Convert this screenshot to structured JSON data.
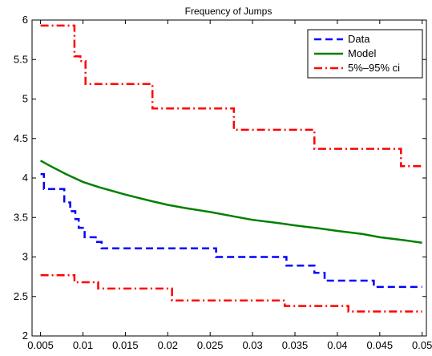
{
  "chart_data": {
    "type": "line",
    "title": "Frequency of Jumps",
    "xlabel": "",
    "ylabel": "",
    "xlim": [
      0.004,
      0.0505
    ],
    "ylim": [
      2,
      6
    ],
    "grid": false,
    "legend_position": "top-right",
    "x_ticks": [
      0.005,
      0.01,
      0.015,
      0.02,
      0.025,
      0.03,
      0.035,
      0.04,
      0.045,
      0.05
    ],
    "x_tick_labels": [
      "0.005",
      "0.01",
      "0.015",
      "0.02",
      "0.025",
      "0.03",
      "0.035",
      "0.04",
      "0.045",
      "0.05"
    ],
    "y_ticks": [
      2,
      2.5,
      3,
      3.5,
      4,
      4.5,
      5,
      5.5,
      6
    ],
    "y_tick_labels": [
      "2",
      "2.5",
      "3",
      "3.5",
      "4",
      "4.5",
      "5",
      "5.5",
      "6"
    ],
    "series": [
      {
        "name": "Data",
        "style": "step-dashed",
        "color": "#0000ff",
        "x": [
          0.005,
          0.0054,
          0.0078,
          0.0085,
          0.0091,
          0.0095,
          0.0102,
          0.0115,
          0.0122,
          0.0257,
          0.034,
          0.0373,
          0.0385,
          0.0443,
          0.05
        ],
        "y": [
          4.05,
          3.86,
          3.69,
          3.58,
          3.48,
          3.37,
          3.25,
          3.19,
          3.11,
          3.0,
          2.89,
          2.8,
          2.7,
          2.62,
          2.62
        ]
      },
      {
        "name": "Model",
        "style": "solid",
        "color": "#008000",
        "x": [
          0.005,
          0.006,
          0.008,
          0.01,
          0.012,
          0.015,
          0.018,
          0.02,
          0.022,
          0.025,
          0.028,
          0.03,
          0.033,
          0.035,
          0.038,
          0.04,
          0.043,
          0.045,
          0.048,
          0.05
        ],
        "y": [
          4.22,
          4.16,
          4.05,
          3.95,
          3.88,
          3.79,
          3.71,
          3.66,
          3.62,
          3.57,
          3.51,
          3.47,
          3.43,
          3.4,
          3.36,
          3.33,
          3.29,
          3.25,
          3.21,
          3.18
        ]
      },
      {
        "name": "5%–95% ci (upper)",
        "legend_label": "5%–95% ci",
        "style": "step-dashdot",
        "color": "#ff0000",
        "x": [
          0.005,
          0.009,
          0.0097,
          0.0103,
          0.0182,
          0.0278,
          0.0373,
          0.0475,
          0.05
        ],
        "y": [
          5.93,
          5.54,
          5.48,
          5.19,
          4.88,
          4.61,
          4.37,
          4.15,
          4.15
        ]
      },
      {
        "name": "5%–95% ci (lower)",
        "style": "step-dashdot",
        "color": "#ff0000",
        "x": [
          0.005,
          0.009,
          0.0118,
          0.0205,
          0.0338,
          0.0413,
          0.05
        ],
        "y": [
          2.77,
          2.68,
          2.6,
          2.45,
          2.38,
          2.31,
          2.31
        ]
      }
    ],
    "legend": [
      {
        "label": "Data",
        "color": "#0000ff",
        "style": "dashed"
      },
      {
        "label": "Model",
        "color": "#008000",
        "style": "solid"
      },
      {
        "label": "5%–95% ci",
        "color": "#ff0000",
        "style": "dashdot"
      }
    ]
  }
}
